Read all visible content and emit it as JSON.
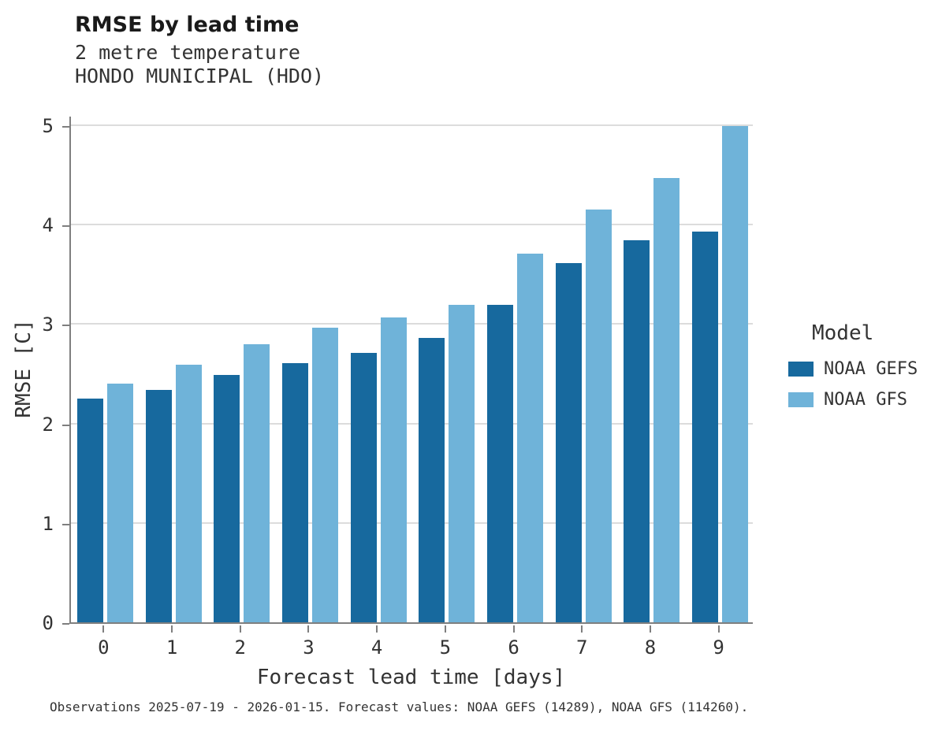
{
  "header": {
    "title": "RMSE by lead time",
    "subtitle1": "2 metre temperature",
    "subtitle2": "HONDO MUNICIPAL (HDO)"
  },
  "footer": {
    "caption": "Observations 2025-07-19 - 2026-01-15. Forecast values: NOAA GEFS (14289), NOAA GFS (114260)."
  },
  "chart_data": {
    "type": "bar",
    "title": "RMSE by lead time",
    "subtitle": "2 metre temperature — HONDO MUNICIPAL (HDO)",
    "xlabel": "Forecast lead time [days]",
    "ylabel": "RMSE [C]",
    "categories": [
      "0",
      "1",
      "2",
      "3",
      "4",
      "5",
      "6",
      "7",
      "8",
      "9"
    ],
    "series": [
      {
        "name": "NOAA GEFS",
        "color": "#17699e",
        "values": [
          2.25,
          2.34,
          2.49,
          2.61,
          2.71,
          2.86,
          3.19,
          3.61,
          3.84,
          3.93
        ]
      },
      {
        "name": "NOAA GFS",
        "color": "#6fb3d9",
        "values": [
          2.4,
          2.59,
          2.8,
          2.96,
          3.07,
          3.19,
          3.71,
          4.15,
          4.47,
          4.99
        ]
      }
    ],
    "ylim": [
      0,
      5
    ],
    "yticks": [
      0,
      1,
      2,
      3,
      4,
      5
    ],
    "grid": true,
    "legend_title": "Model",
    "legend_position": "right"
  },
  "colors": {
    "grid": "#dcdcdc",
    "spine": "#7f7f7f",
    "text": "#333333"
  }
}
